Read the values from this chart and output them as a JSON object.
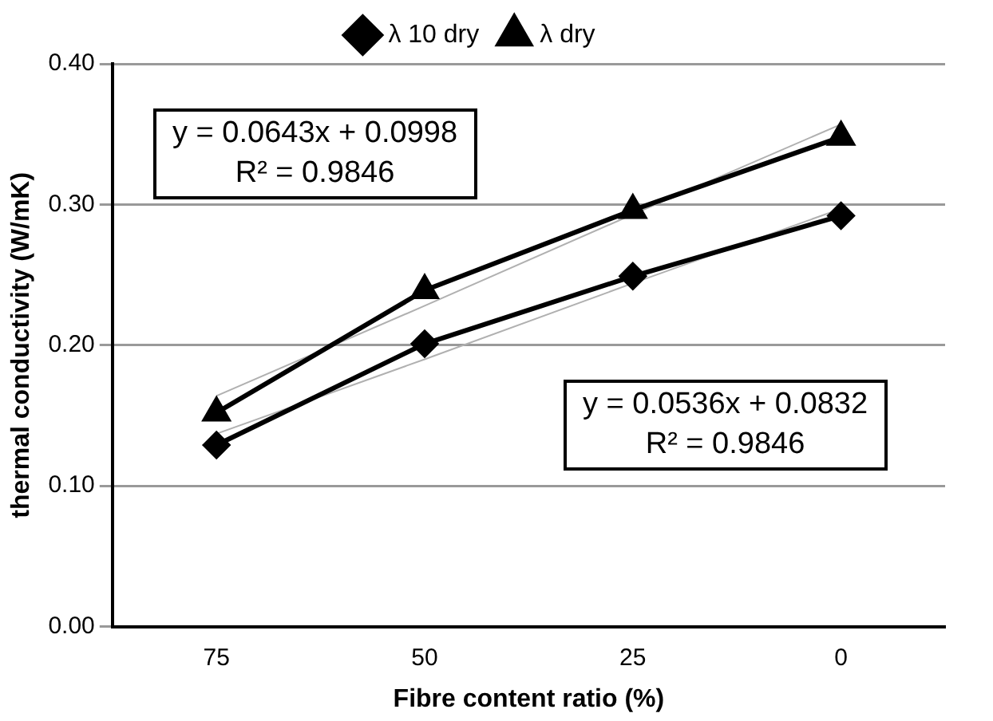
{
  "chart_data": {
    "type": "line",
    "xlabel": "Fibre content ratio (%)",
    "ylabel": "thermal conductivity (W/mK)",
    "categories": [
      "75",
      "50",
      "25",
      "0"
    ],
    "series": [
      {
        "name": "λ 10 dry",
        "color": "#000000",
        "marker": "diamond",
        "values": [
          0.129,
          0.201,
          0.249,
          0.292
        ]
      },
      {
        "name": "λ dry",
        "color": "#000000",
        "marker": "triangle",
        "values": [
          0.152,
          0.239,
          0.296,
          0.348
        ]
      },
      {
        "color": "#b0b0b0",
        "marker": "none",
        "values": [
          0.164,
          0.228,
          0.293,
          0.357
        ]
      },
      {
        "color": "#b0b0b0",
        "marker": "none",
        "values": [
          0.137,
          0.19,
          0.244,
          0.297
        ]
      }
    ],
    "ylim": [
      0,
      0.4
    ],
    "yticks": [
      {
        "value": 0,
        "label": "0.00"
      },
      {
        "value": 0.1,
        "label": "0.10"
      },
      {
        "value": 0.2,
        "label": "0.20"
      },
      {
        "value": 0.3,
        "label": "0.30"
      },
      {
        "value": 0.4,
        "label": "0.40"
      }
    ],
    "grid": "y",
    "legend": "top",
    "annotations": [
      "y = 0.0643x + 0.0998\nR² = 0.9846",
      "y = 0.0536x + 0.0832\nR² = 0.9846"
    ]
  }
}
